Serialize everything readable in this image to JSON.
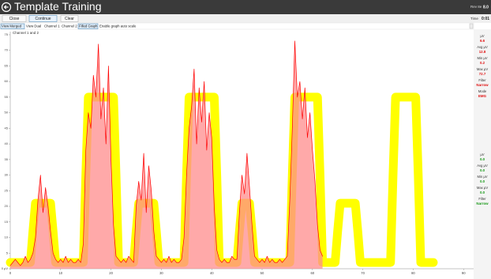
{
  "header": {
    "title": "Template Training",
    "rev": "Rev 8e",
    "version": "8.0"
  },
  "toolbar": {
    "buttons": [
      "Close",
      "Continue",
      "Clear"
    ],
    "time_label": "Time",
    "time": "0:01"
  },
  "tabs": [
    "View Merged",
    "View Dual",
    "Channel 1",
    "Channel 2",
    "Filled Graph",
    "Enable graph auto scale"
  ],
  "sidebar": {
    "top": [
      [
        "µV",
        "6.6"
      ],
      [
        "Avg µV",
        "12.8"
      ],
      [
        "Min µV",
        "0.2"
      ],
      [
        "Max µV",
        "72.7"
      ],
      [
        "Filter",
        "Narrow"
      ],
      [
        "Mode",
        "EMG"
      ]
    ],
    "bottom": [
      [
        "µV",
        "0.0"
      ],
      [
        "Avg µV",
        "0.0"
      ],
      [
        "Min µV",
        "0.0"
      ],
      [
        "Max µV",
        "0.0"
      ],
      [
        "Filter",
        "Narrow"
      ]
    ]
  },
  "chart_data": {
    "type": "line",
    "title": "Channel 1 and 2",
    "filled": true,
    "x": [
      0,
      0.5,
      1,
      1.5,
      2,
      2.5,
      3,
      3.5,
      4,
      4.5,
      5,
      5.5,
      6,
      6.5,
      7,
      7.5,
      8,
      8.5,
      9,
      9.5,
      10,
      10.5,
      11,
      11.5,
      12,
      12.5,
      13,
      13.5,
      14,
      14.5,
      15,
      15.5,
      16,
      16.5,
      17,
      17.5,
      18,
      18.5,
      19,
      19.5,
      20,
      20.5,
      21,
      21.5,
      22,
      22.5,
      23,
      23.5,
      24,
      24.5,
      25,
      25.5,
      26,
      26.5,
      27,
      27.5,
      28,
      28.5,
      29,
      29.5,
      30,
      30.5,
      31,
      31.5,
      32,
      32.5,
      33,
      33.5,
      34,
      34.5,
      35,
      35.5,
      36,
      36.5,
      37,
      37.5,
      38,
      38.5,
      39,
      39.5,
      40,
      40.5,
      41,
      41.5,
      42,
      42.5,
      43,
      43.5,
      44,
      44.5,
      45,
      45.5,
      46,
      46.5,
      47,
      47.5,
      48,
      48.5,
      49,
      49.5,
      50,
      50.5,
      51,
      51.5,
      52,
      52.5,
      53,
      53.5,
      54,
      54.5,
      55,
      55.5,
      56,
      56.5,
      57,
      57.5,
      58,
      58.5,
      59,
      59.5,
      60,
      60.5,
      61,
      61.5,
      62,
      62.5,
      63,
      63.5,
      64,
      64.5,
      65,
      65.5,
      66,
      66.5,
      67,
      67.5,
      68,
      68.5,
      69,
      69.5,
      70,
      70.5,
      71,
      71.5,
      72,
      72.5,
      73,
      73.5,
      74,
      74.5,
      75,
      75.5,
      76,
      76.5,
      77,
      77.5,
      78,
      78.5,
      79,
      79.5,
      80,
      80.5,
      81,
      81.5,
      82,
      82.5,
      83,
      83.5,
      84
    ],
    "series": [
      {
        "color": "#ffff00",
        "values": [
          2,
          2,
          2,
          2,
          2,
          2,
          2,
          2,
          2,
          12,
          21,
          21,
          21,
          21,
          21,
          21,
          21,
          12,
          2,
          2,
          2,
          2,
          2,
          2,
          2,
          2,
          2,
          2,
          2,
          2,
          30,
          55,
          55,
          55,
          55,
          55,
          55,
          55,
          55,
          55,
          55,
          55,
          30,
          2,
          2,
          2,
          2,
          2,
          2,
          2,
          12,
          21,
          21,
          21,
          21,
          21,
          21,
          21,
          12,
          2,
          2,
          2,
          2,
          2,
          2,
          2,
          2,
          2,
          2,
          2,
          30,
          55,
          55,
          55,
          55,
          55,
          55,
          55,
          55,
          55,
          55,
          55,
          30,
          2,
          2,
          2,
          2,
          2,
          2,
          2,
          2,
          12,
          21,
          21,
          21,
          21,
          12,
          2,
          2,
          2,
          2,
          2,
          2,
          2,
          2,
          2,
          2,
          2,
          2,
          2,
          2,
          2,
          30,
          55,
          55,
          55,
          55,
          55,
          55,
          55,
          55,
          55,
          55,
          30,
          2,
          2,
          2,
          2,
          2,
          2,
          12,
          21,
          21,
          21,
          21,
          21,
          21,
          21,
          12,
          2,
          2,
          2,
          2,
          2,
          2,
          2,
          2,
          2,
          2,
          2,
          2,
          2,
          30,
          55,
          55,
          55,
          55,
          55,
          55,
          55,
          55,
          55,
          30,
          2,
          2,
          2,
          2,
          2,
          2
        ]
      },
      {
        "color": "#ff0000",
        "fill": "#ff8c8c",
        "values": [
          1,
          2,
          3,
          2,
          1,
          2,
          4,
          2,
          3,
          5,
          10,
          22,
          30,
          18,
          26,
          20,
          12,
          5,
          3,
          2,
          3,
          2,
          4,
          2,
          3,
          2,
          2,
          3,
          2,
          8,
          38,
          50,
          45,
          62,
          55,
          72,
          48,
          58,
          40,
          65,
          35,
          14,
          4,
          3,
          2,
          3,
          2,
          4,
          3,
          2,
          20,
          28,
          22,
          37,
          18,
          33,
          25,
          12,
          4,
          3,
          2,
          3,
          2,
          4,
          2,
          3,
          2,
          2,
          3,
          10,
          30,
          45,
          52,
          64,
          40,
          58,
          47,
          60,
          38,
          50,
          42,
          20,
          6,
          3,
          2,
          3,
          2,
          2,
          4,
          3,
          3,
          18,
          30,
          24,
          37,
          26,
          14,
          4,
          3,
          2,
          3,
          2,
          4,
          2,
          3,
          2,
          2,
          3,
          2,
          3,
          4,
          22,
          45,
          73,
          55,
          60,
          48,
          58,
          42,
          50,
          38,
          28,
          14,
          6,
          4,
          null,
          null,
          null,
          null,
          null,
          null,
          null,
          null,
          null,
          null,
          null,
          null,
          null,
          null,
          null,
          null,
          null,
          null,
          null,
          null,
          null,
          null,
          null,
          null,
          null,
          null,
          null,
          null,
          null,
          null,
          null,
          null,
          null,
          null,
          null,
          null,
          null,
          null,
          null,
          null,
          null,
          null,
          null,
          null
        ]
      }
    ],
    "xlim": [
      0,
      92
    ],
    "ylim": [
      0,
      76
    ],
    "xticks": [
      0,
      10,
      20,
      30,
      40,
      50,
      60,
      70,
      80,
      90
    ],
    "yticks": [
      {
        "value": 0,
        "label": "0 µV"
      },
      5,
      10,
      15,
      20,
      25,
      30,
      35,
      40,
      45,
      50,
      55,
      60,
      65,
      70,
      75
    ]
  }
}
